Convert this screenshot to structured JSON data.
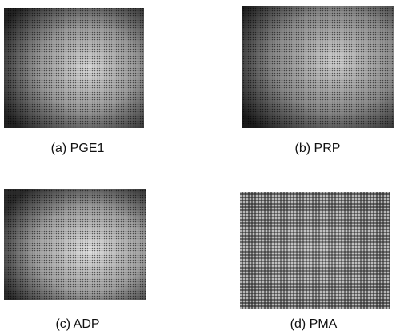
{
  "figure": {
    "panels": [
      {
        "caption": "(a) PGE1"
      },
      {
        "caption": "(b) PRP"
      },
      {
        "caption": "(c) ADP"
      },
      {
        "caption": "(d) PMA"
      }
    ]
  }
}
